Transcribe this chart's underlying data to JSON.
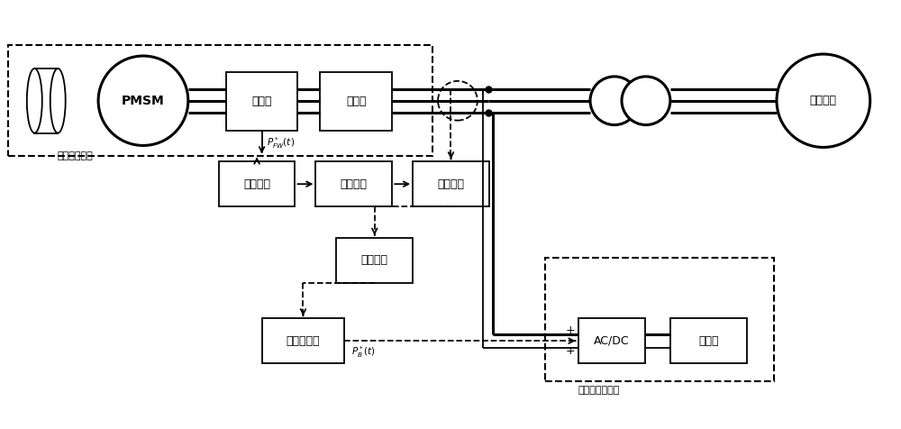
{
  "bg_color": "#ffffff",
  "flywheel_label": "飞轮储能系统",
  "electrochemical_label": "电化学储能系统",
  "pmsm_label": "PMSM",
  "rectifier_label": "整流器",
  "inverter_label": "逆变器",
  "freq_sense_label": "频率感知",
  "virtual_inertia1_label": "虚拟慣性",
  "flywheel_droop_label": "飞轮下垂",
  "virtual_inertia2_label": "虚拟慣性",
  "electrochemical_droop_label": "电化学下垂",
  "acdc_label": "AC/DC",
  "battery_label": "蓄电池",
  "ac_grid_label": "交流电网"
}
